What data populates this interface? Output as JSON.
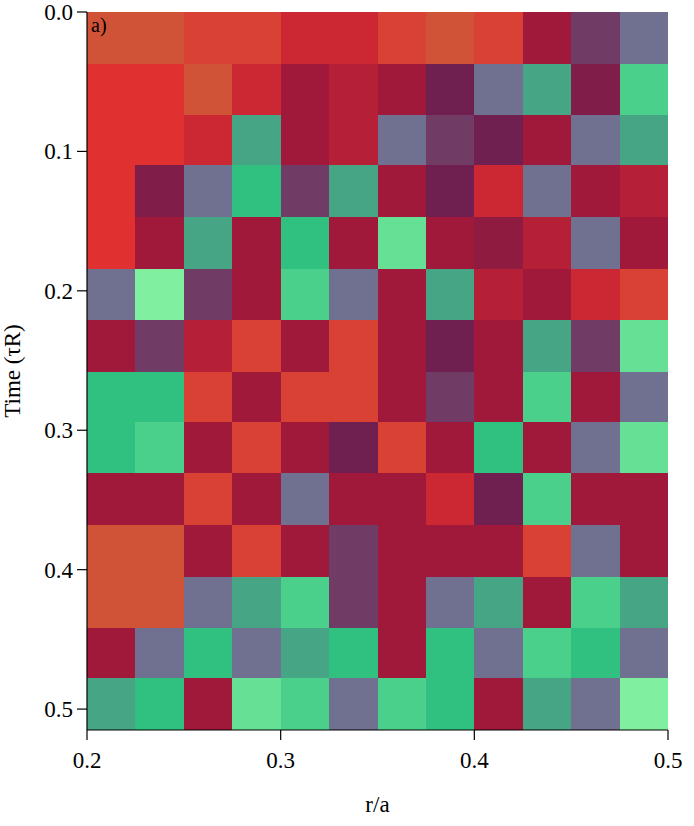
{
  "chart_data": {
    "type": "heatmap",
    "panel_label": "a)",
    "x_label": "r/a",
    "y_label": "Time (τR)",
    "xlim": [
      0.2,
      0.5
    ],
    "ylim": [
      0,
      0.515
    ],
    "xticks": [
      0.2,
      0.3,
      0.4,
      0.5
    ],
    "yticks": [
      {
        "value": 0,
        "label": "0.0"
      },
      0.1,
      0.2,
      0.3,
      0.4,
      0.5
    ],
    "zlim": [
      0,
      1
    ],
    "x_edges": [
      0.2,
      0.225,
      0.25,
      0.275,
      0.3,
      0.325,
      0.35,
      0.375,
      0.4,
      0.425,
      0.45,
      0.475,
      0.5
    ],
    "y_edges": [
      0,
      0.037,
      0.074,
      0.11,
      0.147,
      0.184,
      0.221,
      0.258,
      0.294,
      0.331,
      0.368,
      0.405,
      0.442,
      0.478,
      0.515
    ],
    "cells": [
      [
        0.05,
        0.05,
        0.1,
        0.1,
        0.2,
        0.2,
        0.1,
        0.05,
        0.1,
        0.3,
        0.5,
        0.6
      ],
      [
        0.15,
        0.15,
        0.05,
        0.2,
        0.3,
        0.25,
        0.3,
        0.45,
        0.6,
        0.7,
        0.4,
        0.8
      ],
      [
        0.15,
        0.15,
        0.2,
        0.7,
        0.3,
        0.25,
        0.6,
        0.5,
        0.45,
        0.3,
        0.6,
        0.7
      ],
      [
        0.15,
        0.4,
        0.6,
        0.75,
        0.5,
        0.7,
        0.3,
        0.45,
        0.2,
        0.6,
        0.3,
        0.25
      ],
      [
        0.15,
        0.3,
        0.7,
        0.3,
        0.75,
        0.3,
        0.85,
        0.3,
        0.35,
        0.25,
        0.6,
        0.3
      ],
      [
        0.6,
        0.9,
        0.5,
        0.3,
        0.8,
        0.6,
        0.3,
        0.7,
        0.25,
        0.3,
        0.2,
        0.1
      ],
      [
        0.3,
        0.5,
        0.25,
        0.1,
        0.3,
        0.1,
        0.3,
        0.45,
        0.3,
        0.7,
        0.5,
        0.85
      ],
      [
        0.75,
        0.75,
        0.1,
        0.3,
        0.1,
        0.1,
        0.3,
        0.5,
        0.3,
        0.8,
        0.3,
        0.6
      ],
      [
        0.75,
        0.8,
        0.3,
        0.1,
        0.3,
        0.45,
        0.1,
        0.3,
        0.75,
        0.3,
        0.6,
        0.85
      ],
      [
        0.3,
        0.3,
        0.1,
        0.3,
        0.6,
        0.3,
        0.3,
        0.2,
        0.45,
        0.8,
        0.3,
        0.3
      ],
      [
        0.05,
        0.05,
        0.3,
        0.1,
        0.3,
        0.5,
        0.3,
        0.3,
        0.3,
        0.1,
        0.6,
        0.3
      ],
      [
        0.05,
        0.05,
        0.6,
        0.7,
        0.8,
        0.5,
        0.3,
        0.6,
        0.7,
        0.3,
        0.8,
        0.7
      ],
      [
        0.3,
        0.6,
        0.75,
        0.6,
        0.7,
        0.75,
        0.3,
        0.75,
        0.6,
        0.8,
        0.75,
        0.6
      ],
      [
        0.7,
        0.75,
        0.3,
        0.85,
        0.8,
        0.6,
        0.8,
        0.75,
        0.3,
        0.7,
        0.6,
        0.9
      ]
    ]
  }
}
